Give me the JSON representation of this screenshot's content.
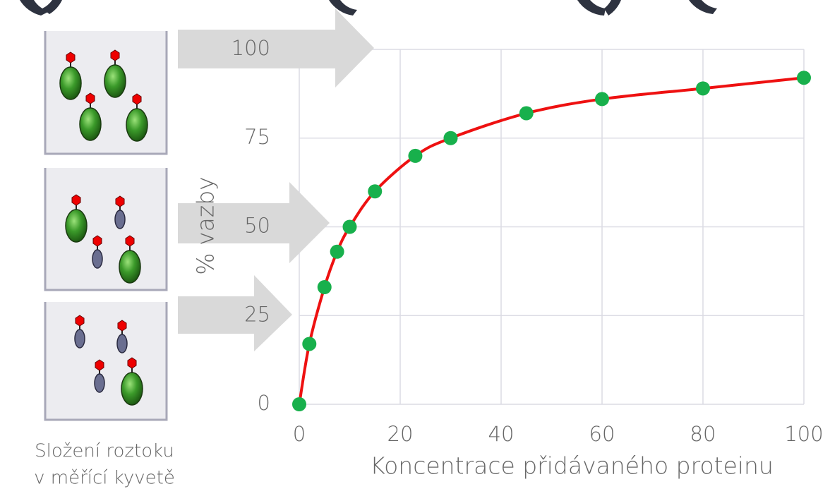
{
  "chart_data": {
    "type": "line",
    "x": [
      0,
      2,
      5,
      7.5,
      10,
      15,
      23,
      30,
      45,
      60,
      80,
      100
    ],
    "series": [
      {
        "values": [
          0,
          17,
          33,
          43,
          50,
          60,
          70,
          75,
          82,
          86,
          89,
          92
        ],
        "color": "#ee1111",
        "marker_color": "#18b04c"
      }
    ],
    "xlabel": "Koncentrace přidávaného proteinu",
    "ylabel": "% vazby",
    "xlim": [
      0,
      100
    ],
    "ylim": [
      0,
      100
    ],
    "xticks": [
      0,
      20,
      40,
      60,
      80,
      100
    ],
    "yticks": [
      0,
      25,
      50,
      75,
      100
    ],
    "grid": true,
    "caption": [
      "Složení roztoku",
      "v měřící kyvetě"
    ]
  }
}
